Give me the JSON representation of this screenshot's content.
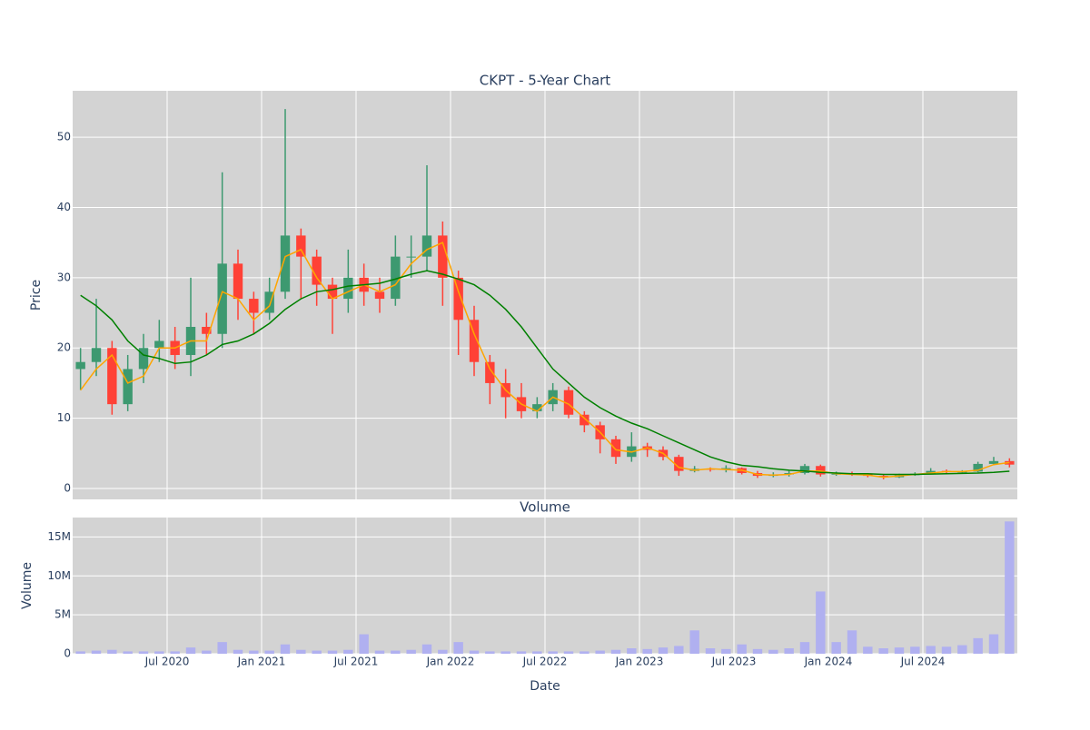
{
  "chart_data": [
    {
      "type": "candlestick",
      "title": "CKPT - 5-Year Chart",
      "ylabel": "Price",
      "x": [
        "2020-01",
        "2020-02",
        "2020-03",
        "2020-04",
        "2020-05",
        "2020-06",
        "2020-07",
        "2020-08",
        "2020-09",
        "2020-10",
        "2020-11",
        "2020-12",
        "2021-01",
        "2021-02",
        "2021-03",
        "2021-04",
        "2021-05",
        "2021-06",
        "2021-07",
        "2021-08",
        "2021-09",
        "2021-10",
        "2021-11",
        "2021-12",
        "2022-01",
        "2022-02",
        "2022-03",
        "2022-04",
        "2022-05",
        "2022-06",
        "2022-07",
        "2022-08",
        "2022-09",
        "2022-10",
        "2022-11",
        "2022-12",
        "2023-01",
        "2023-02",
        "2023-03",
        "2023-04",
        "2023-05",
        "2023-06",
        "2023-07",
        "2023-08",
        "2023-09",
        "2023-10",
        "2023-11",
        "2023-12",
        "2024-01",
        "2024-02",
        "2024-03",
        "2024-04",
        "2024-05",
        "2024-06",
        "2024-07",
        "2024-08",
        "2024-09",
        "2024-10",
        "2024-11",
        "2024-12"
      ],
      "open": [
        17,
        18,
        20,
        12,
        17,
        20,
        21,
        19,
        23,
        22,
        32,
        27,
        25,
        28,
        36,
        33,
        29,
        27,
        30,
        28,
        27,
        33,
        33,
        36,
        30,
        24,
        18,
        15,
        13,
        11,
        12,
        14,
        10.5,
        9,
        7,
        4.5,
        6,
        5.5,
        4.5,
        2.5,
        2.8,
        2.7,
        2.9,
        2.2,
        1.8,
        2.0,
        2.2,
        3.2,
        2.0,
        2.1,
        2.0,
        1.8,
        1.6,
        1.9,
        2.1,
        2.5,
        2.4,
        2.4,
        3.5,
        3.9
      ],
      "high": [
        20,
        27,
        21,
        19,
        22,
        24,
        23,
        30,
        25,
        45,
        34,
        28,
        30,
        54,
        37,
        34,
        30,
        34,
        32,
        30,
        36,
        36,
        46,
        38,
        31,
        26,
        19,
        17,
        15,
        13,
        15,
        14.5,
        11,
        9.5,
        7.5,
        8,
        6.5,
        6,
        4.8,
        3.2,
        3.0,
        3.3,
        3.0,
        2.5,
        2.3,
        2.5,
        3.5,
        3.4,
        2.4,
        2.4,
        2.2,
        2.0,
        2.1,
        2.3,
        2.9,
        2.7,
        2.6,
        3.8,
        4.5,
        4.3
      ],
      "low": [
        14,
        16,
        10.5,
        11,
        15,
        18,
        17,
        16,
        19,
        20,
        24,
        22,
        24,
        27,
        27,
        26,
        22,
        25,
        26,
        25,
        26,
        30,
        31,
        26,
        19,
        16,
        12,
        10,
        10,
        10,
        11,
        10,
        8,
        5,
        3.5,
        3.8,
        4.5,
        4,
        1.8,
        2.3,
        2.4,
        2.3,
        2.0,
        1.5,
        1.6,
        1.7,
        2.0,
        1.7,
        1.8,
        1.8,
        1.6,
        1.3,
        1.5,
        1.8,
        2.0,
        2.2,
        2.2,
        2.3,
        3.3,
        3.0
      ],
      "close": [
        18,
        20,
        12,
        17,
        20,
        21,
        19,
        23,
        22,
        32,
        27,
        25,
        28,
        36,
        33,
        29,
        27,
        30,
        28,
        27,
        33,
        33,
        36,
        30,
        24,
        18,
        15,
        13,
        11,
        12,
        14,
        10.5,
        9,
        7,
        4.5,
        6,
        5.5,
        4.5,
        2.5,
        2.8,
        2.7,
        2.9,
        2.2,
        1.8,
        2.0,
        2.2,
        3.2,
        2.0,
        2.1,
        2.0,
        1.8,
        1.6,
        1.9,
        2.1,
        2.5,
        2.4,
        2.4,
        3.5,
        3.9,
        3.4
      ],
      "increasing_color": "#3d9970",
      "decreasing_color": "#ff4136",
      "overlays": [
        {
          "color": "#ffa500",
          "values": [
            14,
            17,
            19,
            15,
            16,
            20,
            20,
            21,
            21,
            28,
            27,
            24,
            26,
            33,
            34,
            30,
            27,
            28,
            29,
            28,
            29,
            32,
            34,
            35,
            28,
            22,
            17,
            14,
            12,
            11,
            13,
            12,
            10,
            8,
            5.5,
            5.2,
            5.8,
            5,
            3,
            2.6,
            2.8,
            2.7,
            2.6,
            2,
            1.9,
            2,
            2.5,
            2.5,
            2.1,
            2,
            1.9,
            1.6,
            1.8,
            2.0,
            2.2,
            2.4,
            2.4,
            2.6,
            3.4,
            3.7
          ]
        },
        {
          "color": "#008000",
          "values": [
            27.5,
            26,
            24,
            21,
            19,
            18.5,
            17.8,
            18,
            19,
            20.5,
            21,
            22,
            23.5,
            25.5,
            27,
            28,
            28.3,
            28.8,
            29,
            29.2,
            29.8,
            30.5,
            31,
            30.5,
            29.8,
            29,
            27.5,
            25.5,
            23,
            20,
            17,
            15,
            13,
            11.5,
            10.3,
            9.3,
            8.5,
            7.5,
            6.5,
            5.5,
            4.5,
            3.8,
            3.3,
            3.1,
            2.8,
            2.6,
            2.5,
            2.3,
            2.2,
            2.1,
            2.1,
            2.0,
            2.0,
            2.0,
            2.05,
            2.1,
            2.15,
            2.2,
            2.3,
            2.45
          ]
        }
      ],
      "xlim": [
        "2020-01",
        "2025-01"
      ],
      "xticks": [
        "2020-07",
        "2021-01",
        "2021-07",
        "2022-01",
        "2022-07",
        "2023-01",
        "2023-07",
        "2024-01",
        "2024-07"
      ],
      "ylim": [
        -1.55,
        56.6
      ],
      "yticks": [
        0,
        10,
        20,
        30,
        40,
        50
      ],
      "grid": true
    },
    {
      "type": "bar",
      "title": "Volume",
      "ylabel": "Volume",
      "xlabel": "Date",
      "color": "#b0b0f0",
      "x": [
        "2020-01",
        "2020-02",
        "2020-03",
        "2020-04",
        "2020-05",
        "2020-06",
        "2020-07",
        "2020-08",
        "2020-09",
        "2020-10",
        "2020-11",
        "2020-12",
        "2021-01",
        "2021-02",
        "2021-03",
        "2021-04",
        "2021-05",
        "2021-06",
        "2021-07",
        "2021-08",
        "2021-09",
        "2021-10",
        "2021-11",
        "2021-12",
        "2022-01",
        "2022-02",
        "2022-03",
        "2022-04",
        "2022-05",
        "2022-06",
        "2022-07",
        "2022-08",
        "2022-09",
        "2022-10",
        "2022-11",
        "2022-12",
        "2023-01",
        "2023-02",
        "2023-03",
        "2023-04",
        "2023-05",
        "2023-06",
        "2023-07",
        "2023-08",
        "2023-09",
        "2023-10",
        "2023-11",
        "2023-12",
        "2024-01",
        "2024-02",
        "2024-03",
        "2024-04",
        "2024-05",
        "2024-06",
        "2024-07",
        "2024-08",
        "2024-09",
        "2024-10",
        "2024-11",
        "2024-12"
      ],
      "values": [
        300000,
        400000,
        500000,
        300000,
        300000,
        300000,
        300000,
        800000,
        400000,
        1500000,
        500000,
        400000,
        400000,
        1200000,
        500000,
        400000,
        400000,
        500000,
        2500000,
        400000,
        400000,
        500000,
        1200000,
        500000,
        1500000,
        400000,
        300000,
        300000,
        300000,
        300000,
        300000,
        300000,
        300000,
        400000,
        500000,
        700000,
        600000,
        800000,
        1000000,
        3000000,
        700000,
        600000,
        1200000,
        600000,
        500000,
        700000,
        1500000,
        8000000,
        1500000,
        3000000,
        900000,
        700000,
        800000,
        900000,
        1000000,
        900000,
        1100000,
        2000000,
        2500000,
        17000000
      ],
      "xlim": [
        "2020-01",
        "2025-01"
      ],
      "xticks": [
        {
          "value": "2020-07",
          "label": "Jul 2020"
        },
        {
          "value": "2021-01",
          "label": "Jan 2021"
        },
        {
          "value": "2021-07",
          "label": "Jul 2021"
        },
        {
          "value": "2022-01",
          "label": "Jan 2022"
        },
        {
          "value": "2022-07",
          "label": "Jul 2022"
        },
        {
          "value": "2023-01",
          "label": "Jan 2023"
        },
        {
          "value": "2023-07",
          "label": "Jul 2023"
        },
        {
          "value": "2024-01",
          "label": "Jan 2024"
        },
        {
          "value": "2024-07",
          "label": "Jul 2024"
        }
      ],
      "ylim": [
        0,
        17500000
      ],
      "yticks": [
        0,
        {
          "value": 5000000,
          "label": "5M"
        },
        {
          "value": 10000000,
          "label": "10M"
        },
        {
          "value": 15000000,
          "label": "15M"
        }
      ],
      "grid": true
    }
  ]
}
